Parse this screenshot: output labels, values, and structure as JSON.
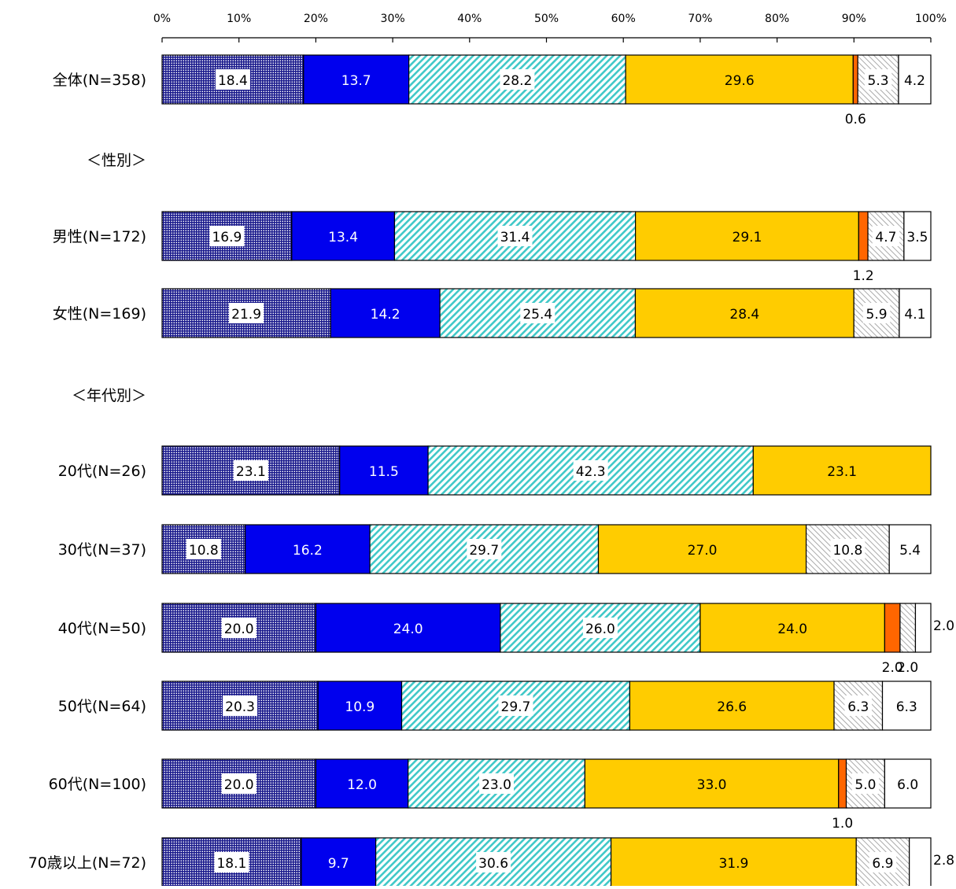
{
  "chart_data": {
    "type": "bar",
    "orientation": "horizontal",
    "stacked": true,
    "percent_scale": true,
    "xlim": [
      0,
      100
    ],
    "x_ticks": [
      "0%",
      "10%",
      "20%",
      "30%",
      "40%",
      "50%",
      "60%",
      "70%",
      "80%",
      "90%",
      "100%"
    ],
    "segment_colors": [
      "#1a1a8c",
      "#0000ee",
      "#40c8c8",
      "#ffcc00",
      "#ff6600",
      "#aaaaaa",
      "#ffffff"
    ],
    "segment_patterns": [
      "grid",
      "solid",
      "diagonal",
      "solid",
      "solid",
      "hatch",
      "none"
    ],
    "section_headers": [
      {
        "label": "＜性別＞",
        "before_row": 1
      },
      {
        "label": "＜年代別＞",
        "before_row": 3
      }
    ],
    "rows": [
      {
        "label": "全体(N=358)",
        "values": [
          18.4,
          13.7,
          28.2,
          29.6,
          0.6,
          5.3,
          4.2
        ]
      },
      {
        "label": "男性(N=172)",
        "values": [
          16.9,
          13.4,
          31.4,
          29.1,
          1.2,
          4.7,
          3.5
        ]
      },
      {
        "label": "女性(N=169)",
        "values": [
          21.9,
          14.2,
          25.4,
          28.4,
          0,
          5.9,
          4.1
        ]
      },
      {
        "label": "20代(N=26)",
        "values": [
          23.1,
          11.5,
          42.3,
          23.1,
          0,
          0,
          0
        ]
      },
      {
        "label": "30代(N=37)",
        "values": [
          10.8,
          16.2,
          29.7,
          27.0,
          0,
          10.8,
          5.4
        ]
      },
      {
        "label": "40代(N=50)",
        "values": [
          20.0,
          24.0,
          26.0,
          24.0,
          2.0,
          2.0,
          2.0
        ]
      },
      {
        "label": "50代(N=64)",
        "values": [
          20.3,
          10.9,
          29.7,
          26.6,
          0,
          6.3,
          6.3
        ]
      },
      {
        "label": "60代(N=100)",
        "values": [
          20.0,
          12.0,
          23.0,
          33.0,
          1.0,
          5.0,
          6.0
        ]
      },
      {
        "label": "70歳以上(N=72)",
        "values": [
          18.1,
          9.7,
          30.6,
          31.9,
          0,
          6.9,
          2.8
        ]
      }
    ],
    "value_labels": [
      [
        "18.4",
        "13.7",
        "28.2",
        "29.6",
        "0.6",
        "5.3",
        "4.2"
      ],
      [
        "16.9",
        "13.4",
        "31.4",
        "29.1",
        "1.2",
        "4.7",
        "3.5"
      ],
      [
        "21.9",
        "14.2",
        "25.4",
        "28.4",
        "",
        "5.9",
        "4.1"
      ],
      [
        "23.1",
        "11.5",
        "42.3",
        "23.1",
        "",
        "",
        ""
      ],
      [
        "10.8",
        "16.2",
        "29.7",
        "27.0",
        "",
        "10.8",
        "5.4"
      ],
      [
        "20.0",
        "24.0",
        "26.0",
        "24.0",
        "2.0",
        "2.0",
        "2.0"
      ],
      [
        "20.3",
        "10.9",
        "29.7",
        "26.6",
        "",
        "6.3",
        "6.3"
      ],
      [
        "20.0",
        "12.0",
        "23.0",
        "33.0",
        "1.0",
        "5.0",
        "6.0"
      ],
      [
        "18.1",
        "9.7",
        "30.6",
        "31.9",
        "",
        "6.9",
        "2.8"
      ]
    ]
  }
}
